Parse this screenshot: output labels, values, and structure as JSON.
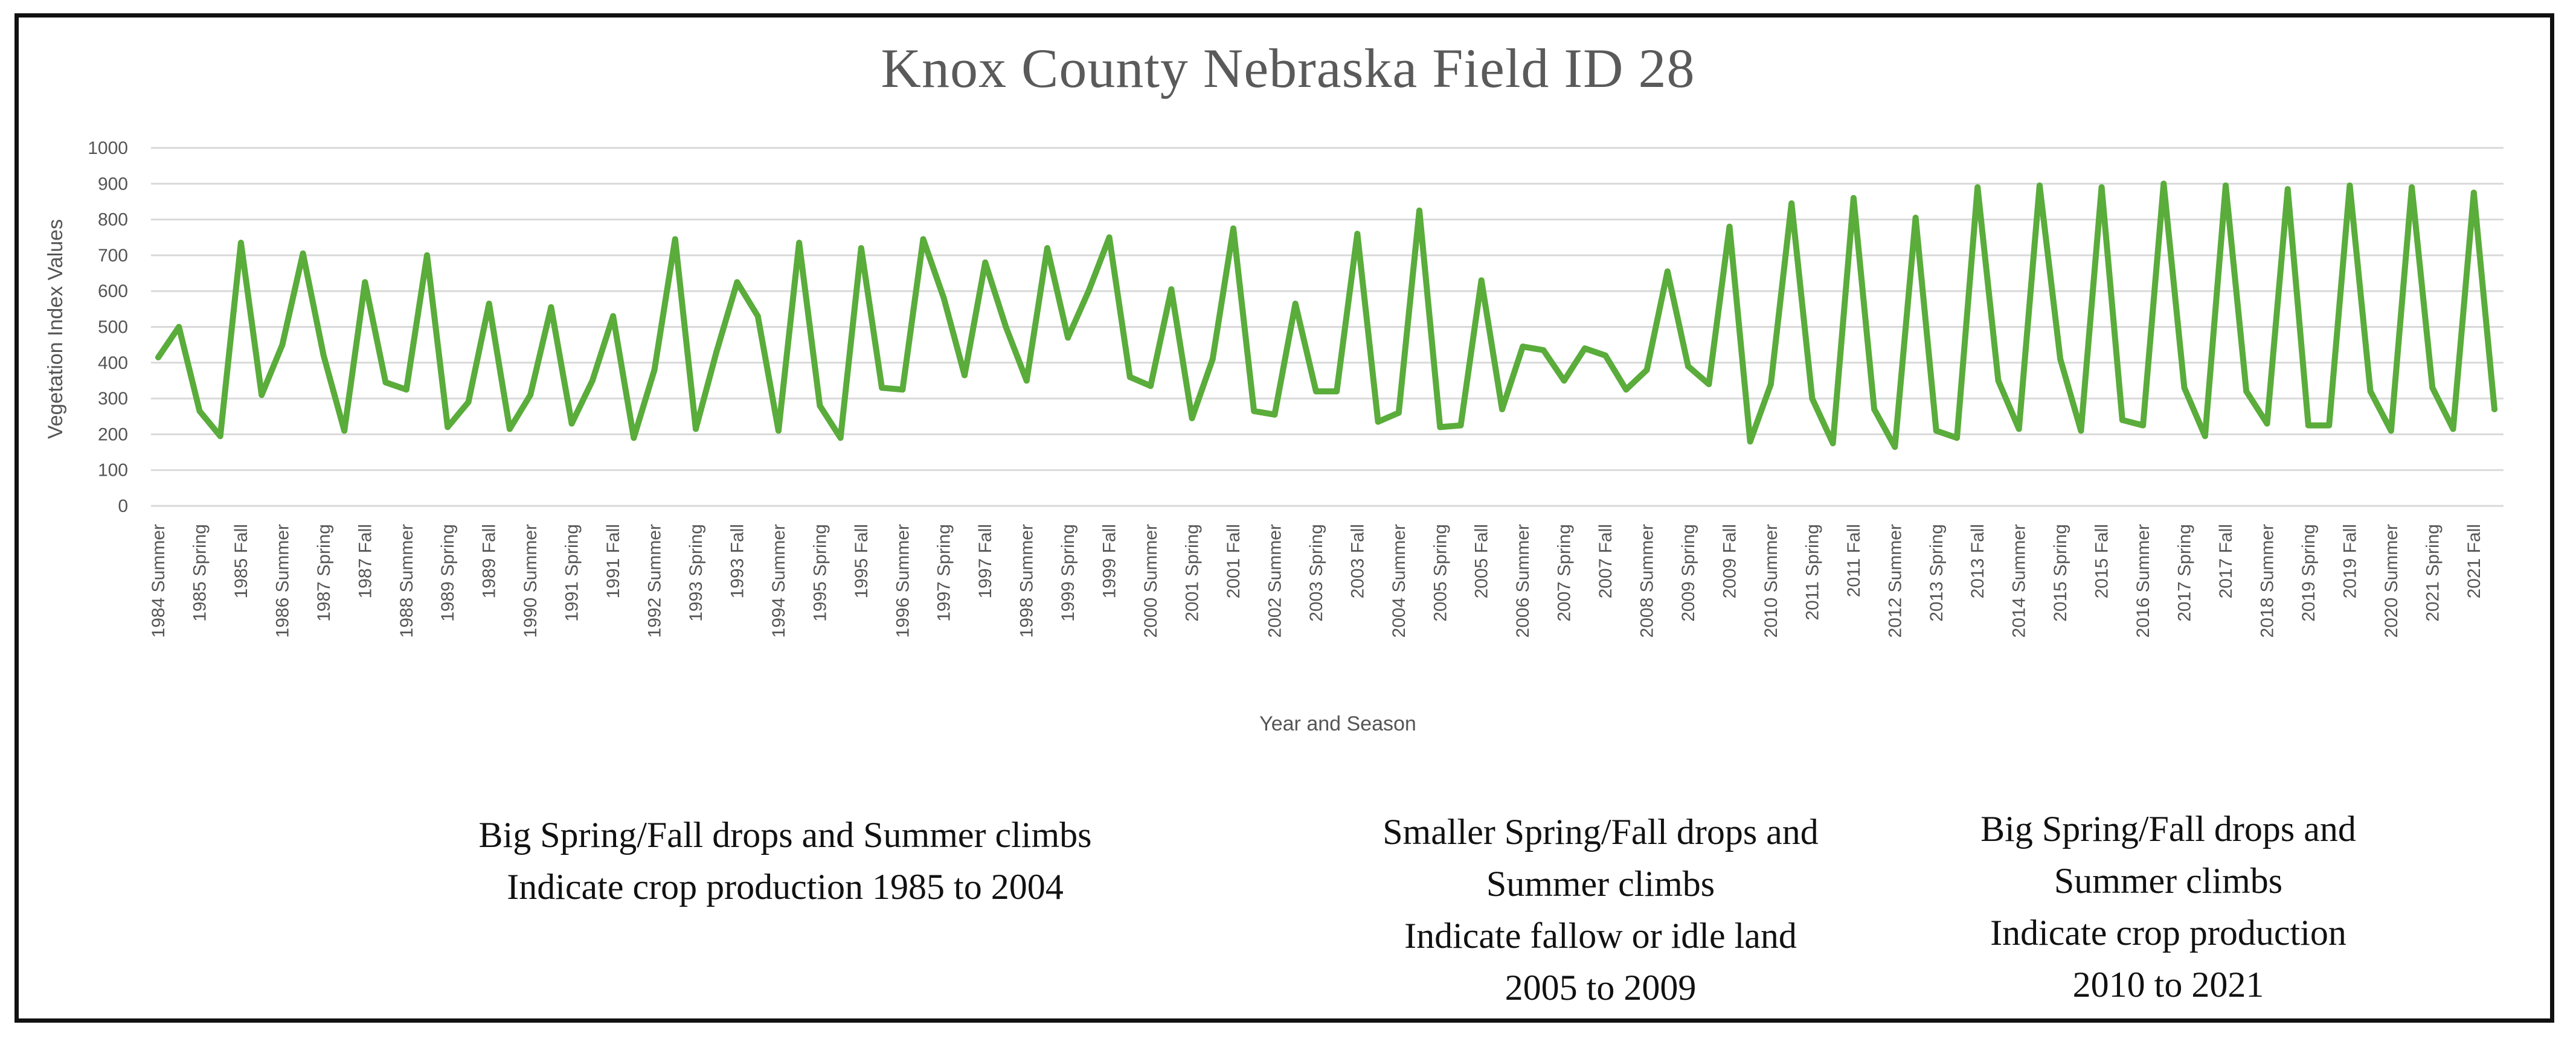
{
  "chart_data": {
    "type": "line",
    "title": "Knox County Nebraska Field ID 28",
    "xlabel": "Year and Season",
    "ylabel": "Vegetation Index Values",
    "ylim": [
      0,
      1000
    ],
    "yticks": [
      0,
      100,
      200,
      300,
      400,
      500,
      600,
      700,
      800,
      900,
      1000
    ],
    "grid": true,
    "series_color": "#5aac3b",
    "x_tick_labels": [
      "1984 Summer",
      "1985 Spring",
      "1985 Fall",
      "1986 Summer",
      "1987 Spring",
      "1987 Fall",
      "1988 Summer",
      "1989 Spring",
      "1989 Fall",
      "1990 Summer",
      "1991 Spring",
      "1991 Fall",
      "1992 Summer",
      "1993 Spring",
      "1993 Fall",
      "1994 Summer",
      "1995 Spring",
      "1995 Fall",
      "1996 Summer",
      "1997 Spring",
      "1997 Fall",
      "1998 Summer",
      "1999 Spring",
      "1999 Fall",
      "2000 Summer",
      "2001 Spring",
      "2001 Fall",
      "2002 Summer",
      "2003 Spring",
      "2003 Fall",
      "2004 Summer",
      "2005 Spring",
      "2005 Fall",
      "2006 Summer",
      "2007 Spring",
      "2007 Fall",
      "2008 Summer",
      "2009 Spring",
      "2009 Fall",
      "2010 Summer",
      "2011 Spring",
      "2011 Fall",
      "2012 Summer",
      "2013 Spring",
      "2013 Fall",
      "2014 Summer",
      "2015 Spring",
      "2015 Fall",
      "2016 Summer",
      "2017 Spring",
      "2017 Fall",
      "2018 Summer",
      "2019 Spring",
      "2019 Fall",
      "2020 Summer",
      "2021 Spring",
      "2021 Fall"
    ],
    "series": [
      {
        "name": "Vegetation Index Values",
        "values": [
          415,
          500,
          265,
          195,
          735,
          310,
          450,
          705,
          420,
          210,
          625,
          345,
          325,
          700,
          220,
          290,
          565,
          215,
          310,
          555,
          230,
          350,
          530,
          190,
          380,
          745,
          215,
          430,
          625,
          530,
          210,
          735,
          280,
          190,
          720,
          330,
          325,
          745,
          580,
          365,
          680,
          500,
          350,
          720,
          470,
          600,
          750,
          360,
          335,
          605,
          245,
          410,
          775,
          265,
          255,
          565,
          320,
          320,
          760,
          235,
          260,
          825,
          220,
          225,
          630,
          270,
          445,
          435,
          350,
          440,
          420,
          325,
          380,
          655,
          390,
          340,
          780,
          180,
          340,
          845,
          300,
          175,
          860,
          270,
          165,
          805,
          210,
          190,
          890,
          350,
          215,
          895,
          410,
          210,
          890,
          240,
          225,
          900,
          330,
          195,
          895,
          320,
          230,
          885,
          225,
          225,
          895,
          320,
          210,
          890,
          330,
          215,
          875,
          270
        ]
      }
    ]
  },
  "annotations": {
    "left": {
      "line1": "Big Spring/Fall drops and Summer climbs",
      "line2": "Indicate crop production 1985 to 2004"
    },
    "middle": {
      "line1": "Smaller Spring/Fall drops and",
      "line2": "Summer climbs",
      "line3": "Indicate fallow or idle land",
      "line4": "2005 to 2009"
    },
    "right": {
      "line1": "Big Spring/Fall drops and",
      "line2": "Summer climbs",
      "line3": "Indicate crop production",
      "line4": "2010 to 2021"
    }
  }
}
